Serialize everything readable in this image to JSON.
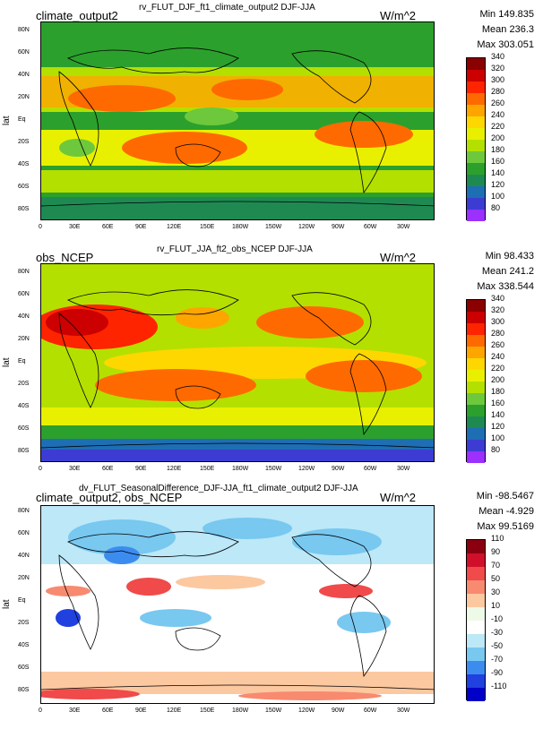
{
  "panels": [
    {
      "top_title": "rv_FLUT_DJF_ft1_climate_output2  DJF-JJA",
      "left_name": "climate_output2",
      "units": "W/m^2",
      "stats": [
        "Min 149.835",
        "Mean 236.3",
        "Max 303.051"
      ],
      "ylabel": "lat",
      "colorbar": {
        "labels": [
          "340",
          "320",
          "300",
          "280",
          "260",
          "240",
          "220",
          "200",
          "180",
          "160",
          "140",
          "120",
          "100",
          "80"
        ],
        "colors": [
          "#8b0000",
          "#cc0000",
          "#ff2400",
          "#ff6a00",
          "#ffa500",
          "#ffd700",
          "#e8f000",
          "#b4e000",
          "#6ec83c",
          "#2ca02c",
          "#1e8a52",
          "#1e6eb4",
          "#3c3cd2",
          "#9b30ff"
        ]
      }
    },
    {
      "top_title": "rv_FLUT_JJA_ft2_obs_NCEP  DJF-JJA",
      "left_name": "obs_NCEP",
      "units": "W/m^2",
      "stats": [
        "Min 98.433",
        "Mean 241.2",
        "Max 338.544"
      ],
      "ylabel": "lat",
      "colorbar": {
        "labels": [
          "340",
          "320",
          "300",
          "280",
          "260",
          "240",
          "220",
          "200",
          "180",
          "160",
          "140",
          "120",
          "100",
          "80"
        ],
        "colors": [
          "#8b0000",
          "#cc0000",
          "#ff2400",
          "#ff6a00",
          "#ffa500",
          "#ffd700",
          "#e8f000",
          "#b4e000",
          "#6ec83c",
          "#2ca02c",
          "#1e8a52",
          "#1e6eb4",
          "#3c3cd2",
          "#9b30ff"
        ]
      }
    },
    {
      "top_title": "dv_FLUT_SeasonalDifference_DJF-JJA_ft1_climate_output2  DJF-JJA",
      "left_name": "climate_output2, obs_NCEP",
      "units": "W/m^2",
      "stats": [
        "Min -98.5467",
        "Mean -4.929",
        "Max 99.5169"
      ],
      "ylabel": "lat",
      "colorbar": {
        "labels": [
          "110",
          "90",
          "70",
          "50",
          "30",
          "10",
          "-10",
          "-30",
          "-50",
          "-70",
          "-90",
          "-110"
        ],
        "colors": [
          "#8b0010",
          "#d0102a",
          "#f04a4a",
          "#f88a70",
          "#fcc8a0",
          "#eefae8",
          "#ffffff",
          "#bce8f8",
          "#78c8f0",
          "#3c8cf0",
          "#2040e0",
          "#0000c8"
        ]
      }
    }
  ],
  "lat_ticks": [
    "80N",
    "60N",
    "40N",
    "20N",
    "Eq",
    "20S",
    "40S",
    "60S",
    "80S"
  ],
  "lon_ticks": [
    "0",
    "30E",
    "60E",
    "90E",
    "120E",
    "150E",
    "180W",
    "150W",
    "120W",
    "90W",
    "60W",
    "30W"
  ]
}
